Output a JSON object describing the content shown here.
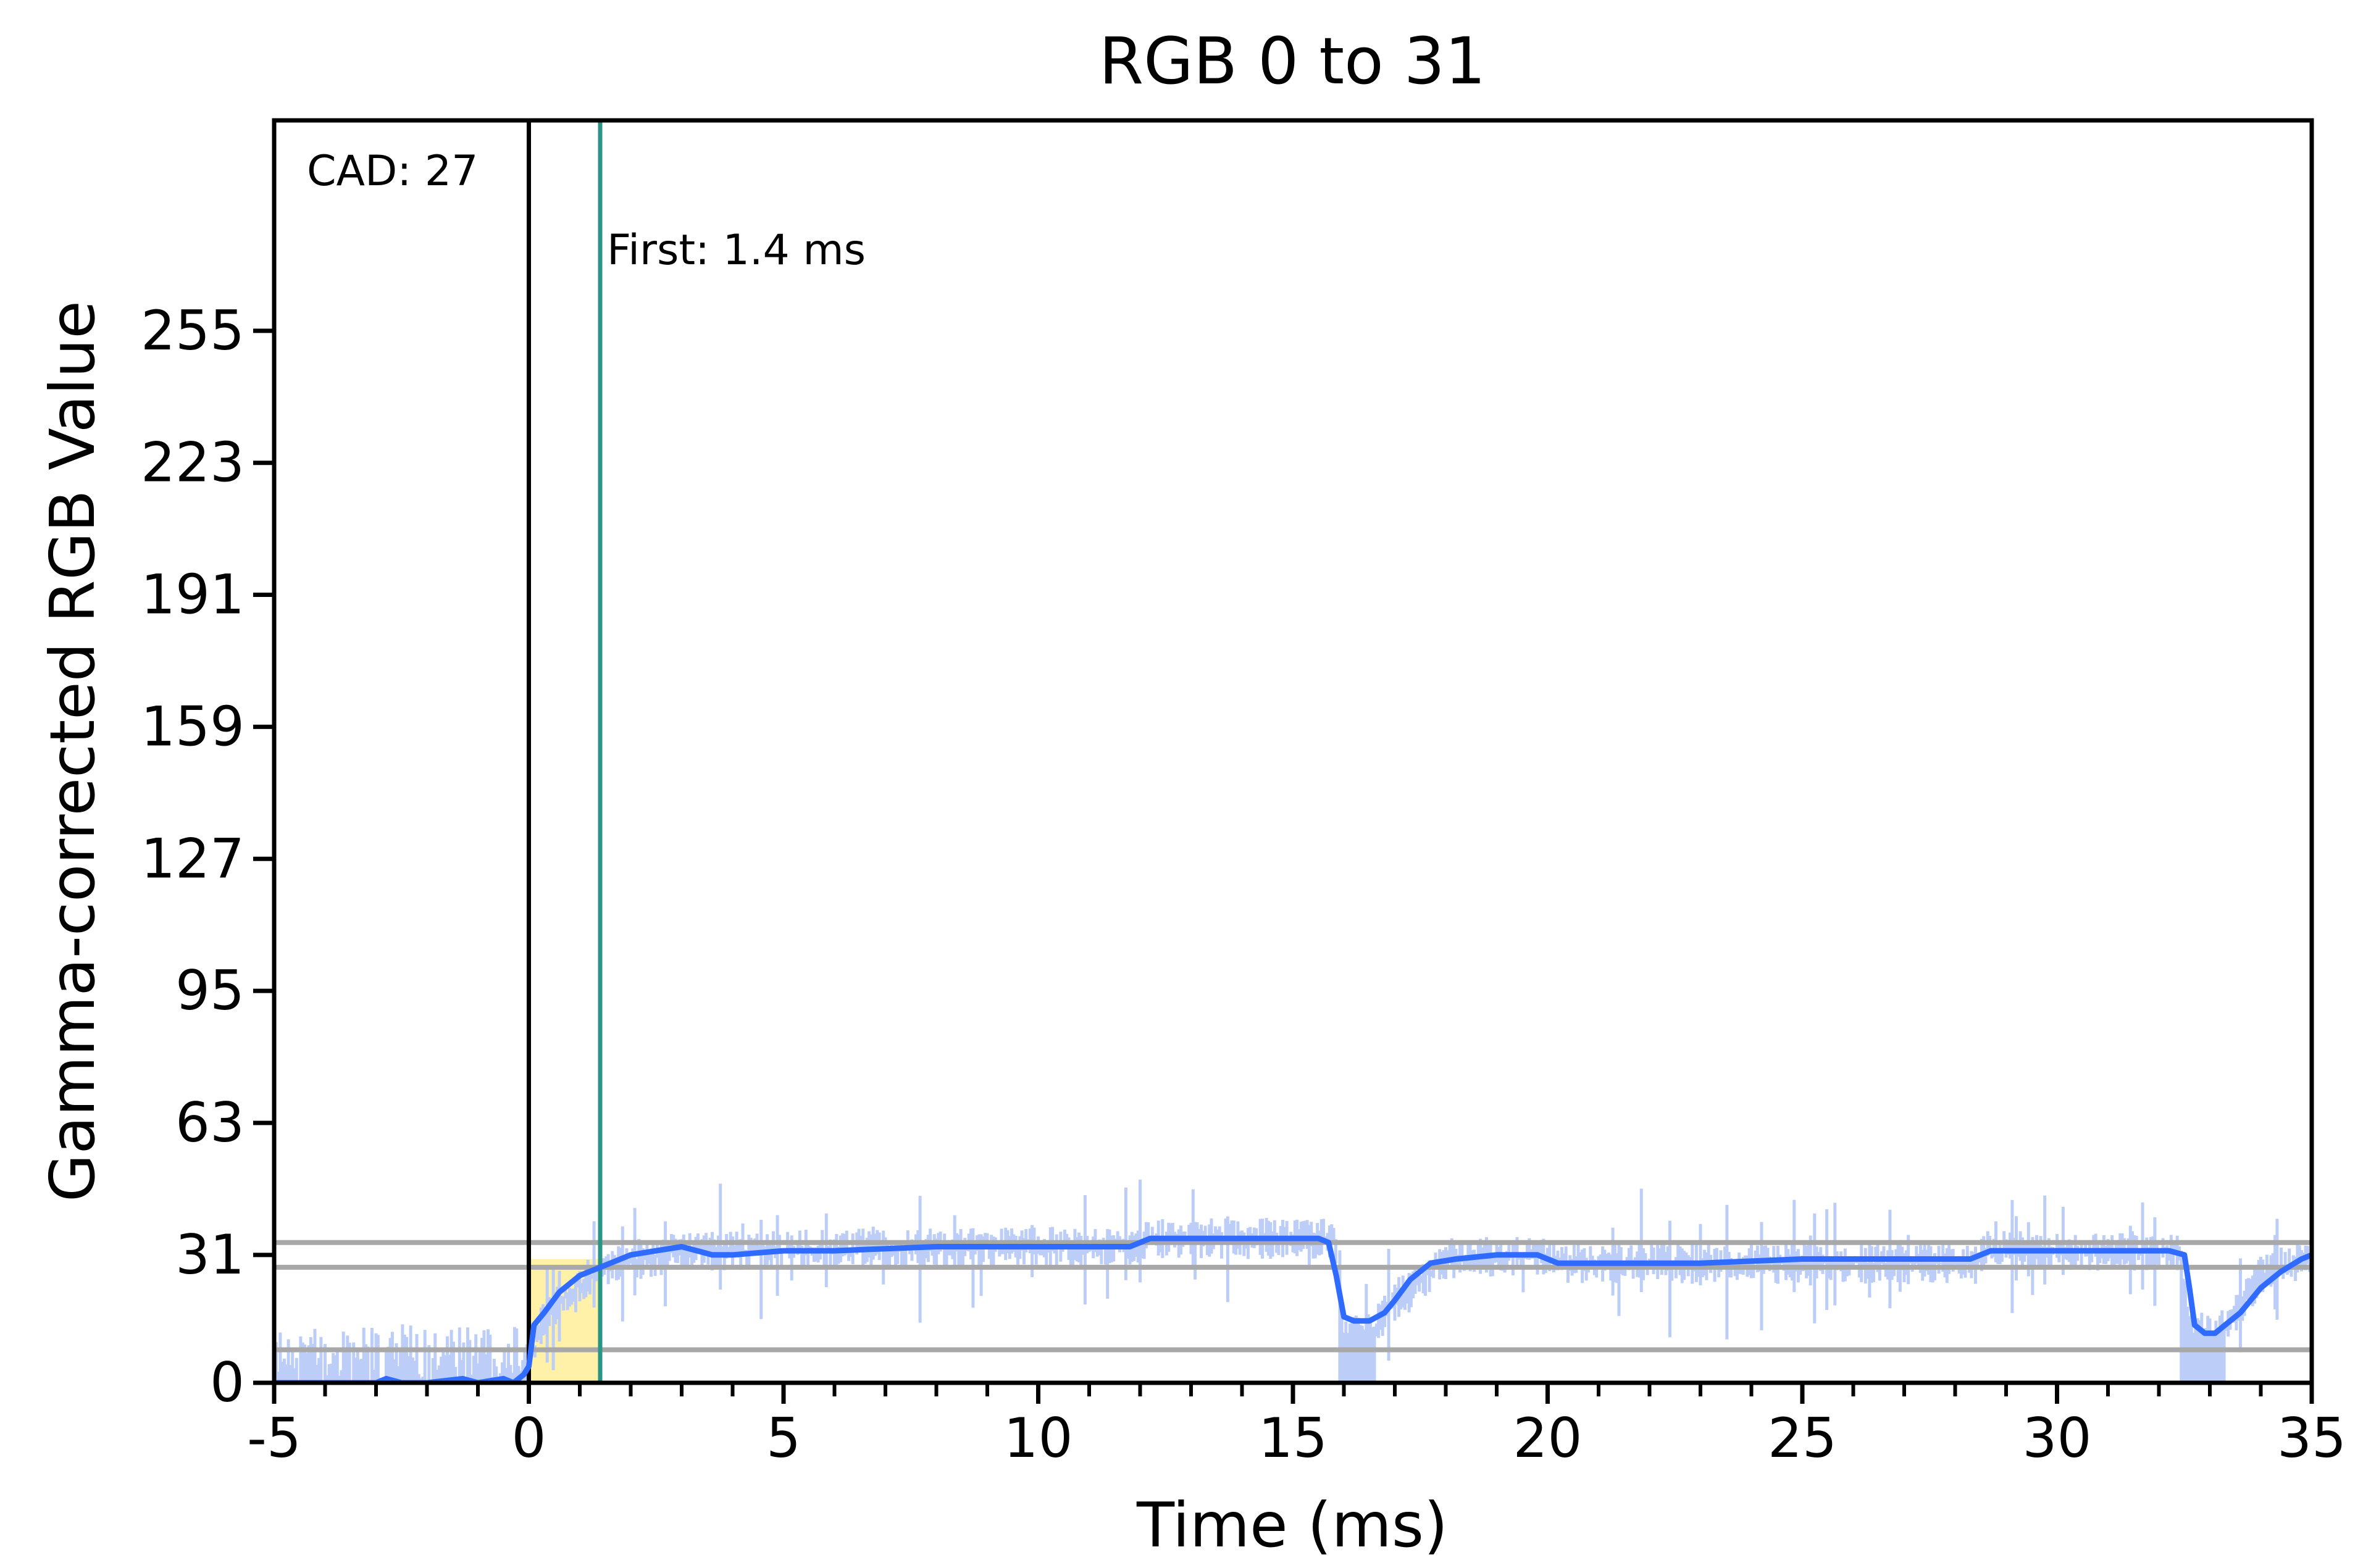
{
  "chart_data": {
    "type": "line",
    "title": "RGB 0 to 31",
    "xlabel": "Time (ms)",
    "ylabel": "Gamma-corrected RGB Value",
    "xlim": [
      -5,
      35
    ],
    "ylim": [
      0,
      306
    ],
    "x_ticks": [
      -5,
      0,
      5,
      10,
      15,
      20,
      25,
      30,
      35
    ],
    "x_minor_step": 1,
    "y_ticks": [
      0,
      31,
      63,
      95,
      127,
      159,
      191,
      223,
      255
    ],
    "grid": false,
    "legend": "none",
    "reference_lines": [
      {
        "name": "upper-threshold",
        "y": 34,
        "color": "#a8a8a8"
      },
      {
        "name": "target",
        "y": 28,
        "color": "#a8a8a8"
      },
      {
        "name": "lower-threshold",
        "y": 8,
        "color": "#a8a8a8"
      }
    ],
    "vertical_markers": [
      {
        "name": "transition-start",
        "x": 0,
        "color": "#000000"
      },
      {
        "name": "first-response",
        "x": 1.4,
        "color": "#2a9486"
      }
    ],
    "annotations": {
      "cad": "CAD: 27",
      "first": "First: 1.4 ms"
    },
    "series": [
      {
        "kind": "smoothed",
        "color": "#2f6bff",
        "x": [
          -5,
          -4,
          -3,
          -2.8,
          -2.5,
          -2,
          -1.3,
          -1,
          -0.5,
          -0.3,
          -0.1,
          0,
          0.1,
          0.3,
          0.6,
          1,
          1.4,
          2,
          2.5,
          3,
          3.3,
          3.6,
          4,
          5,
          6,
          8,
          10,
          11.8,
          12.2,
          14,
          15.5,
          15.7,
          15.85,
          16,
          16.2,
          16.5,
          16.8,
          17,
          17.3,
          17.7,
          18.2,
          19,
          19.5,
          19.8,
          20.2,
          21,
          23,
          25,
          28.3,
          28.7,
          30,
          32.2,
          32.5,
          32.6,
          32.7,
          32.9,
          33.1,
          33.3,
          33.6,
          34,
          34.4,
          34.8,
          35
        ],
        "y": [
          0,
          0,
          0,
          1,
          0,
          0,
          1,
          0,
          1,
          0,
          2,
          4,
          14,
          17,
          22,
          26,
          28,
          31,
          32,
          33,
          32,
          31,
          31,
          32,
          32,
          33,
          33,
          33,
          35,
          35,
          35,
          34,
          26,
          16,
          15,
          15,
          17,
          20,
          25,
          29,
          30,
          31,
          31,
          31,
          29,
          29,
          29,
          30,
          30,
          32,
          32,
          32,
          31,
          23,
          14,
          12,
          12,
          14,
          17,
          23,
          27,
          30,
          31
        ]
      },
      {
        "kind": "raw-samples",
        "color": "#bccdf7",
        "x_range": [
          -5,
          35
        ],
        "baseline": [
          {
            "x": -5,
            "y": 0
          },
          {
            "x": -0.1,
            "y": 0
          },
          {
            "x": 0.3,
            "y": 16
          },
          {
            "x": 1.4,
            "y": 28
          },
          {
            "x": 3,
            "y": 32
          },
          {
            "x": 12,
            "y": 33
          },
          {
            "x": 12.2,
            "y": 35
          },
          {
            "x": 15.8,
            "y": 35
          },
          {
            "x": 16,
            "y": 12
          },
          {
            "x": 16.5,
            "y": 12
          },
          {
            "x": 17,
            "y": 20
          },
          {
            "x": 18,
            "y": 30
          },
          {
            "x": 19.8,
            "y": 31
          },
          {
            "x": 20.2,
            "y": 29
          },
          {
            "x": 28.4,
            "y": 29
          },
          {
            "x": 28.6,
            "y": 32
          },
          {
            "x": 32.4,
            "y": 32
          },
          {
            "x": 32.6,
            "y": 12
          },
          {
            "x": 33.2,
            "y": 12
          },
          {
            "x": 34,
            "y": 26
          },
          {
            "x": 35,
            "y": 31
          }
        ],
        "noise_amplitude_below_zero_ms": 14,
        "noise_amplitude_after": 5,
        "dips": [
          [
            15.9,
            16.6,
            0
          ],
          [
            32.4,
            33.3,
            0
          ]
        ]
      }
    ],
    "shaded_region": {
      "x": [
        0,
        1.4
      ],
      "color": "#fff1a8"
    }
  }
}
